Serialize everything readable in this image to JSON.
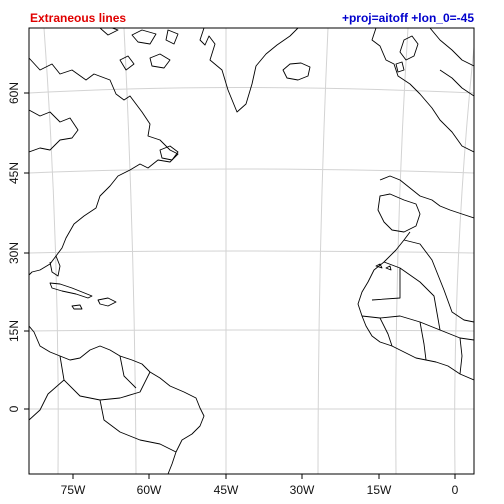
{
  "header": {
    "title": "Extraneous lines",
    "projection": "+proj=aitoff +lon_0=-45",
    "title_color": "#e00000",
    "projection_color": "#0000cc"
  },
  "map": {
    "projection": "aitoff",
    "lon_0": -45,
    "graticule_color": "#d3d3d3",
    "coastline_color": "#000000",
    "x_ticks": [
      "75W",
      "60W",
      "45W",
      "30W",
      "15W",
      "0"
    ],
    "y_ticks": [
      "0",
      "15N",
      "30N",
      "45N",
      "60N"
    ]
  }
}
